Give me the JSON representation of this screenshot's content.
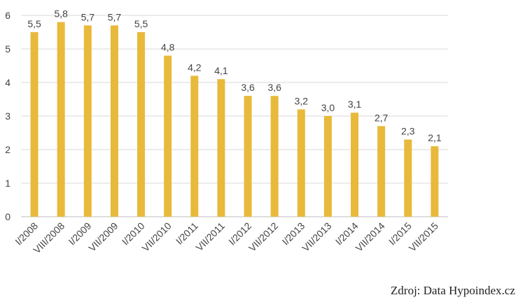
{
  "chart_data": {
    "type": "bar",
    "title": "",
    "xlabel": "",
    "ylabel": "",
    "ylim": [
      0,
      6
    ],
    "yticks": [
      0,
      1,
      2,
      3,
      4,
      5,
      6
    ],
    "grid": true,
    "bar_color": "#E8B93A",
    "categories": [
      "I/2008",
      "VIII/2008",
      "I/2009",
      "VII/2009",
      "I/2010",
      "VII/2010",
      "I/2011",
      "VII/2011",
      "I/2012",
      "VII/2012",
      "I/2013",
      "VII/2013",
      "I/2014",
      "VII/2014",
      "I/2015",
      "VII/2015"
    ],
    "values": [
      5.5,
      5.8,
      5.7,
      5.7,
      5.5,
      4.8,
      4.2,
      4.1,
      3.6,
      3.6,
      3.2,
      3.0,
      3.1,
      2.7,
      2.3,
      2.1
    ],
    "data_labels": [
      "5,5",
      "5,8",
      "5,7",
      "5,7",
      "5,5",
      "4,8",
      "4,2",
      "4,1",
      "3,6",
      "3,6",
      "3,2",
      "3,0",
      "3,1",
      "2,7",
      "2,3",
      "2,1"
    ]
  },
  "source_text": "Zdroj: Data Hypoindex.cz"
}
